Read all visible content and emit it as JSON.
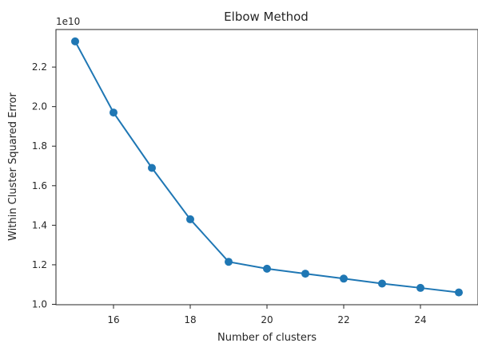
{
  "chart_data": {
    "type": "line",
    "title": "Elbow Method",
    "xlabel": "Number of clusters",
    "ylabel": "Within Cluster Squared Error",
    "y_offset_label": "1e10",
    "x": [
      15,
      16,
      17,
      18,
      19,
      20,
      21,
      22,
      23,
      24,
      25
    ],
    "series": [
      {
        "values": [
          2.33,
          1.97,
          1.69,
          1.43,
          1.215,
          1.18,
          1.155,
          1.13,
          1.105,
          1.083,
          1.06
        ]
      }
    ],
    "xlim": [
      14.5,
      25.5
    ],
    "ylim": [
      0.998,
      2.39
    ],
    "x_ticks": [
      16,
      18,
      20,
      22,
      24
    ],
    "x_tick_labels": [
      "16",
      "18",
      "20",
      "22",
      "24"
    ],
    "y_ticks": [
      1.0,
      1.2,
      1.4,
      1.6,
      1.8,
      2.0,
      2.2
    ],
    "y_tick_labels": [
      "1.0",
      "1.2",
      "1.4",
      "1.6",
      "1.8",
      "2.0",
      "2.2"
    ],
    "grid": false,
    "line_color": "#1f77b4",
    "marker_color": "#1f77b4"
  }
}
